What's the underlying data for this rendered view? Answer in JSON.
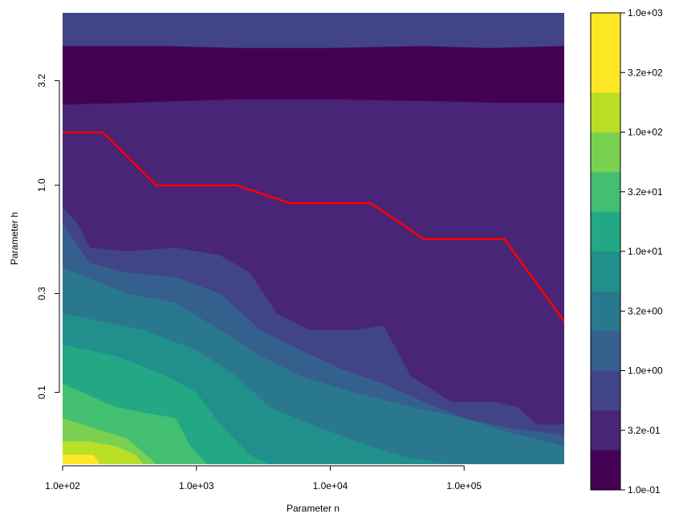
{
  "chart_data": {
    "type": "heatmap",
    "title": "",
    "xlabel": "Parameter n",
    "ylabel": "Parameter h",
    "x_scale": "log",
    "y_scale": "log",
    "xlim": [
      100,
      560000
    ],
    "ylim": [
      0.045,
      6.8
    ],
    "x_ticks": [
      {
        "value": 100,
        "label": "1.0e+02"
      },
      {
        "value": 1000,
        "label": "1.0e+03"
      },
      {
        "value": 10000,
        "label": "1.0e+04"
      },
      {
        "value": 100000,
        "label": "1.0e+05"
      }
    ],
    "y_ticks": [
      {
        "value": 0.1,
        "label": "0.1"
      },
      {
        "value": 0.3,
        "label": "0.3"
      },
      {
        "value": 1.0,
        "label": "1.0"
      },
      {
        "value": 3.2,
        "label": "3.2"
      }
    ],
    "colorbar": {
      "scale": "log",
      "range": [
        0.1,
        1000
      ],
      "levels": [
        {
          "upper": 0.178,
          "color": "#440154"
        },
        {
          "upper": 0.316,
          "color": "#482576"
        },
        {
          "upper": 0.562,
          "color": "#414487"
        },
        {
          "upper": 1.0,
          "color": "#35608D"
        },
        {
          "upper": 1.78,
          "color": "#2A788E"
        },
        {
          "upper": 3.16,
          "color": "#21908C"
        },
        {
          "upper": 5.62,
          "color": "#22A884"
        },
        {
          "upper": 10.0,
          "color": "#43BF71"
        },
        {
          "upper": 17.8,
          "color": "#7AD151"
        },
        {
          "upper": 31.6,
          "color": "#BBDF27"
        },
        {
          "upper": 56.2,
          "color": "#FDE725"
        },
        {
          "upper": 100.0,
          "color": "#FDE725"
        }
      ],
      "tick_labels": [
        "1.0e+03",
        "3.2e+02",
        "1.0e+02",
        "3.2e+01",
        "1.0e+01",
        "3.2e+00",
        "1.0e+00",
        "3.2e-01",
        "1.0e-01"
      ],
      "tick_values": [
        1000,
        316,
        100,
        31.6,
        10,
        3.16,
        1,
        0.316,
        0.1
      ]
    },
    "contour_regions": [
      {
        "level": 0,
        "value": 0.14,
        "color": "#440154",
        "boundary": [
          [
            100,
            4.7
          ],
          [
            600,
            4.7
          ],
          [
            2000,
            4.6
          ],
          [
            10000,
            4.6
          ],
          [
            50000,
            4.7
          ],
          [
            150000,
            4.6
          ],
          [
            560000,
            4.7
          ]
        ]
      },
      {
        "level": 1,
        "value": 0.25,
        "color": "#482576",
        "boundary": [
          [
            100,
            2.45
          ],
          [
            300,
            2.5
          ],
          [
            800,
            2.55
          ],
          [
            2000,
            2.6
          ],
          [
            10000,
            2.6
          ],
          [
            50000,
            2.55
          ],
          [
            200000,
            2.5
          ],
          [
            560000,
            2.5
          ]
        ]
      },
      {
        "level": 2,
        "value": 0.45,
        "color": "#414487",
        "boundary": [
          [
            100,
            0.78
          ],
          [
            130,
            0.65
          ],
          [
            160,
            0.5
          ],
          [
            300,
            0.48
          ],
          [
            700,
            0.5
          ],
          [
            1500,
            0.46
          ],
          [
            2500,
            0.38
          ],
          [
            4000,
            0.24
          ],
          [
            7000,
            0.2
          ],
          [
            15000,
            0.2
          ],
          [
            25000,
            0.21
          ],
          [
            40000,
            0.12
          ],
          [
            80000,
            0.09
          ],
          [
            170000,
            0.09
          ],
          [
            250000,
            0.085
          ],
          [
            350000,
            0.07
          ],
          [
            560000,
            0.07
          ]
        ]
      },
      {
        "level": 3,
        "value": 0.8,
        "color": "#35608D",
        "boundary": [
          [
            100,
            0.65
          ],
          [
            160,
            0.42
          ],
          [
            300,
            0.38
          ],
          [
            700,
            0.36
          ],
          [
            1500,
            0.3
          ],
          [
            3000,
            0.2
          ],
          [
            6000,
            0.16
          ],
          [
            12000,
            0.13
          ],
          [
            25000,
            0.11
          ],
          [
            50000,
            0.09
          ],
          [
            100000,
            0.075
          ],
          [
            200000,
            0.068
          ],
          [
            560000,
            0.062
          ]
        ]
      },
      {
        "level": 4,
        "value": 1.4,
        "color": "#2A788E",
        "boundary": [
          [
            100,
            0.4
          ],
          [
            300,
            0.3
          ],
          [
            700,
            0.27
          ],
          [
            1500,
            0.2
          ],
          [
            3000,
            0.15
          ],
          [
            6000,
            0.12
          ],
          [
            15000,
            0.1
          ],
          [
            40000,
            0.085
          ],
          [
            100000,
            0.075
          ],
          [
            200000,
            0.065
          ],
          [
            560000,
            0.055
          ]
        ]
      },
      {
        "level": 5,
        "value": 2.5,
        "color": "#21908C",
        "boundary": [
          [
            100,
            0.24
          ],
          [
            400,
            0.2
          ],
          [
            1000,
            0.16
          ],
          [
            2000,
            0.12
          ],
          [
            3500,
            0.085
          ],
          [
            8000,
            0.068
          ],
          [
            20000,
            0.055
          ],
          [
            40000,
            0.048
          ],
          [
            80000,
            0.045
          ]
        ]
      },
      {
        "level": 6,
        "value": 4.2,
        "color": "#22A884",
        "boundary": [
          [
            100,
            0.17
          ],
          [
            250,
            0.15
          ],
          [
            600,
            0.12
          ],
          [
            1000,
            0.1
          ],
          [
            1500,
            0.07
          ],
          [
            2500,
            0.05
          ],
          [
            3500,
            0.045
          ]
        ]
      },
      {
        "level": 7,
        "value": 7.5,
        "color": "#43BF71",
        "boundary": [
          [
            100,
            0.11
          ],
          [
            250,
            0.085
          ],
          [
            400,
            0.08
          ],
          [
            700,
            0.075
          ],
          [
            900,
            0.055
          ],
          [
            1200,
            0.045
          ]
        ]
      },
      {
        "level": 8,
        "value": 13,
        "color": "#7AD151",
        "boundary": [
          [
            100,
            0.075
          ],
          [
            200,
            0.065
          ],
          [
            300,
            0.06
          ],
          [
            450,
            0.048
          ],
          [
            500,
            0.045
          ]
        ]
      },
      {
        "level": 9,
        "value": 24,
        "color": "#BBDF27",
        "boundary": [
          [
            100,
            0.058
          ],
          [
            150,
            0.058
          ],
          [
            250,
            0.055
          ],
          [
            350,
            0.05
          ],
          [
            400,
            0.045
          ]
        ]
      },
      {
        "level": 10,
        "value": 45,
        "color": "#FDE725",
        "boundary": [
          [
            100,
            0.05
          ],
          [
            170,
            0.05
          ],
          [
            190,
            0.045
          ]
        ]
      }
    ],
    "series": [
      {
        "type": "line",
        "color": "#FF0000",
        "x": [
          100,
          200,
          500,
          2000,
          5000,
          20000,
          50000,
          200000,
          560000
        ],
        "y": [
          1.8,
          1.8,
          1.0,
          1.0,
          0.82,
          0.82,
          0.55,
          0.55,
          0.22
        ]
      }
    ]
  }
}
